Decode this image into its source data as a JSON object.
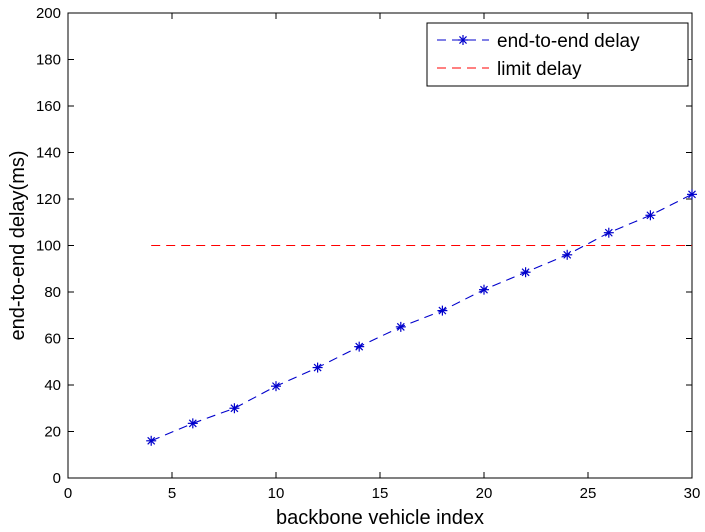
{
  "chart_data": {
    "type": "line",
    "title": "",
    "xlabel": "backbone vehicle index",
    "ylabel": "end-to-end delay(ms)",
    "xlim": [
      0,
      30
    ],
    "ylim": [
      0,
      200
    ],
    "xticks": [
      0,
      5,
      10,
      15,
      20,
      25,
      30
    ],
    "yticks": [
      0,
      20,
      40,
      60,
      80,
      100,
      120,
      140,
      160,
      180,
      200
    ],
    "grid": false,
    "legend_position": "top-right",
    "series": [
      {
        "name": "end-to-end delay",
        "color": "#0000cc",
        "line_style": "dashed",
        "marker": "asterisk",
        "x": [
          4,
          6,
          8,
          10,
          12,
          14,
          16,
          18,
          20,
          22,
          24,
          26,
          28,
          30
        ],
        "y": [
          16,
          23.5,
          30,
          39.5,
          47.5,
          56.5,
          65,
          72,
          81,
          88.5,
          96,
          105.5,
          113,
          122
        ]
      },
      {
        "name": "limit delay",
        "color": "#ff0000",
        "line_style": "dashed",
        "marker": "none",
        "x": [
          4,
          30
        ],
        "y": [
          100,
          100
        ]
      }
    ]
  }
}
